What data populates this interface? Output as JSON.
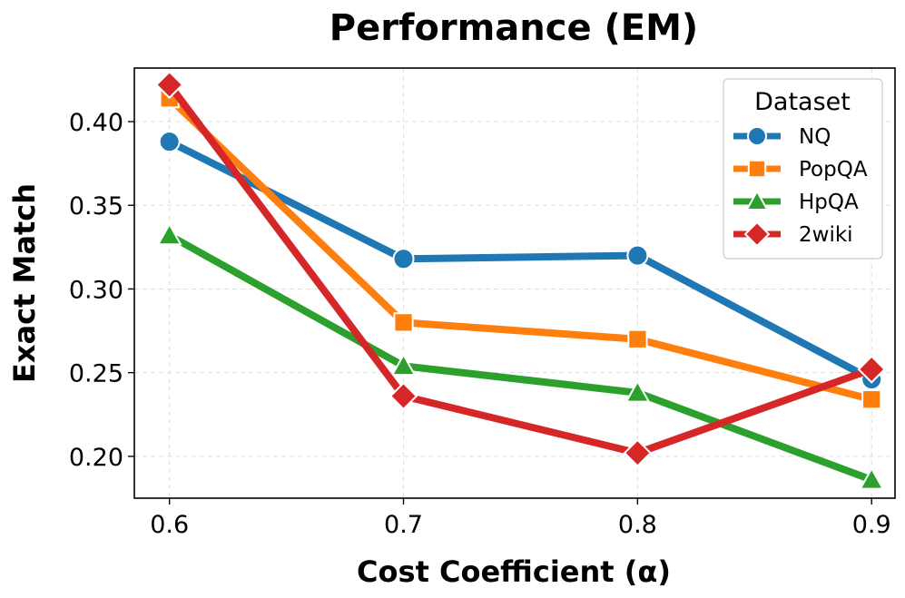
{
  "chart_data": {
    "type": "line",
    "title": "Performance (EM)",
    "xlabel": "Cost Coefficient (α)",
    "ylabel": "Exact Match",
    "x": [
      0.6,
      0.7,
      0.8,
      0.9
    ],
    "x_tick_labels": [
      "0.6",
      "0.7",
      "0.8",
      "0.9"
    ],
    "y_ticks": [
      0.2,
      0.25,
      0.3,
      0.35,
      0.4
    ],
    "y_tick_labels": [
      "0.20",
      "0.25",
      "0.30",
      "0.35",
      "0.40"
    ],
    "xlim": [
      0.585,
      0.91
    ],
    "ylim": [
      0.175,
      0.432
    ],
    "grid": true,
    "legend": {
      "title": "Dataset",
      "placement": "top-right"
    },
    "series": [
      {
        "name": "NQ",
        "values": [
          0.388,
          0.318,
          0.32,
          0.246
        ],
        "color": "#1f77b4",
        "marker": "circle"
      },
      {
        "name": "PopQA",
        "values": [
          0.414,
          0.28,
          0.27,
          0.234
        ],
        "color": "#ff7f0e",
        "marker": "square"
      },
      {
        "name": "HpQA",
        "values": [
          0.332,
          0.254,
          0.238,
          0.186
        ],
        "color": "#2ca02c",
        "marker": "triangle"
      },
      {
        "name": "2wiki",
        "values": [
          0.422,
          0.236,
          0.202,
          0.252
        ],
        "color": "#d62728",
        "marker": "diamond"
      }
    ]
  }
}
